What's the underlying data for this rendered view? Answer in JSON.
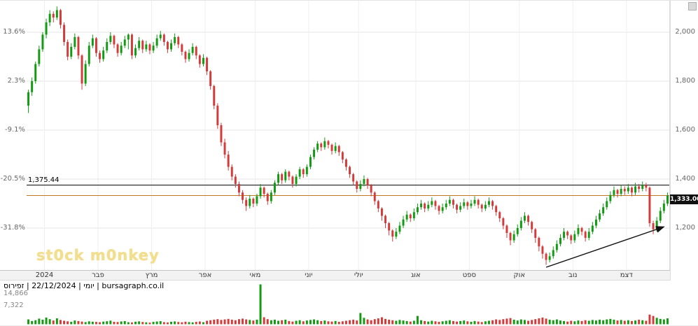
{
  "app": {
    "watermark": "st0ck m0nkey",
    "footer": "יומי | 22/12/2024 | זפירוס | bursagraph.co.il"
  },
  "chart_data": {
    "type": "candlestick",
    "title": "",
    "timeframe": "daily, year 2024",
    "pct_ticks": [
      "13.6%",
      "2.3%",
      "-9.1%",
      "-20.5%",
      "-31.8%"
    ],
    "price_ticks": [
      {
        "label": "2,000",
        "value": 2000
      },
      {
        "label": "1,800",
        "value": 1800
      },
      {
        "label": "1,600",
        "value": 1600
      },
      {
        "label": "1,400",
        "value": 1400
      },
      {
        "label": "1,200",
        "value": 1200
      }
    ],
    "current_price": {
      "label": "1,333.00",
      "value": 1333
    },
    "ref_line": {
      "label": "1,375.44",
      "value": 1375.44,
      "color": "#000000"
    },
    "avg_line": {
      "value": 1333,
      "color": "#c07820"
    },
    "volume_ticks": [
      "14,866",
      "7,322"
    ],
    "volume_max": 14866,
    "colors": {
      "up": "#129a12",
      "down": "#d43a3a"
    },
    "months": [
      {
        "label": "2024",
        "bar": 5
      },
      {
        "label": "פבר",
        "bar": 20
      },
      {
        "label": "מרץ",
        "bar": 35
      },
      {
        "label": "אפר",
        "bar": 50
      },
      {
        "label": "מאי",
        "bar": 64
      },
      {
        "label": "יוני",
        "bar": 79
      },
      {
        "label": "יולי",
        "bar": 93
      },
      {
        "label": "אוג",
        "bar": 109
      },
      {
        "label": "ספט",
        "bar": 124
      },
      {
        "label": "אוק",
        "bar": 138
      },
      {
        "label": "נוב",
        "bar": 153
      },
      {
        "label": "דצמ",
        "bar": 168
      }
    ],
    "trend_arrow": {
      "from": {
        "bar": 145,
        "price": 1040
      },
      "to": {
        "bar": 178,
        "price": 1205
      }
    },
    "candles": [
      [
        1700,
        1765,
        1670,
        1755
      ],
      [
        1755,
        1815,
        1740,
        1800
      ],
      [
        1800,
        1880,
        1790,
        1870
      ],
      [
        1870,
        1945,
        1860,
        1930
      ],
      [
        1930,
        2000,
        1920,
        1990
      ],
      [
        1990,
        2055,
        1975,
        2040
      ],
      [
        2040,
        2090,
        2025,
        2075
      ],
      [
        2075,
        2085,
        2040,
        2060
      ],
      [
        2060,
        2105,
        2050,
        2090
      ],
      [
        2090,
        2095,
        2015,
        2030
      ],
      [
        2030,
        2040,
        1945,
        1960
      ],
      [
        1960,
        1970,
        1885,
        1900
      ],
      [
        1900,
        1955,
        1890,
        1940
      ],
      [
        1940,
        1995,
        1930,
        1980
      ],
      [
        1980,
        1985,
        1890,
        1905
      ],
      [
        1905,
        1910,
        1765,
        1790
      ],
      [
        1790,
        1885,
        1780,
        1870
      ],
      [
        1870,
        1960,
        1860,
        1945
      ],
      [
        1945,
        1990,
        1935,
        1975
      ],
      [
        1975,
        1980,
        1900,
        1915
      ],
      [
        1915,
        1925,
        1875,
        1890
      ],
      [
        1890,
        1940,
        1880,
        1925
      ],
      [
        1925,
        1975,
        1915,
        1960
      ],
      [
        1960,
        2000,
        1950,
        1985
      ],
      [
        1985,
        1990,
        1935,
        1950
      ],
      [
        1950,
        1955,
        1900,
        1915
      ],
      [
        1915,
        1960,
        1905,
        1945
      ],
      [
        1945,
        1985,
        1935,
        1970
      ],
      [
        1970,
        1995,
        1930,
        1990
      ],
      [
        1990,
        1995,
        1890,
        1905
      ],
      [
        1905,
        1950,
        1895,
        1935
      ],
      [
        1935,
        1980,
        1925,
        1965
      ],
      [
        1965,
        1970,
        1915,
        1930
      ],
      [
        1930,
        1965,
        1920,
        1950
      ],
      [
        1950,
        1955,
        1910,
        1925
      ],
      [
        1925,
        1960,
        1915,
        1945
      ],
      [
        1945,
        1990,
        1935,
        1975
      ],
      [
        1975,
        2005,
        1965,
        1990
      ],
      [
        1990,
        1995,
        1945,
        1960
      ],
      [
        1960,
        1965,
        1915,
        1930
      ],
      [
        1930,
        1970,
        1920,
        1955
      ],
      [
        1955,
        1995,
        1945,
        1980
      ],
      [
        1980,
        1985,
        1935,
        1950
      ],
      [
        1950,
        1955,
        1905,
        1920
      ],
      [
        1920,
        1925,
        1875,
        1890
      ],
      [
        1890,
        1930,
        1880,
        1915
      ],
      [
        1915,
        1955,
        1905,
        1940
      ],
      [
        1940,
        1945,
        1890,
        1905
      ],
      [
        1905,
        1910,
        1855,
        1870
      ],
      [
        1870,
        1910,
        1860,
        1895
      ],
      [
        1895,
        1900,
        1825,
        1840
      ],
      [
        1840,
        1845,
        1765,
        1780
      ],
      [
        1780,
        1785,
        1685,
        1700
      ],
      [
        1700,
        1710,
        1605,
        1620
      ],
      [
        1620,
        1630,
        1535,
        1550
      ],
      [
        1550,
        1565,
        1485,
        1500
      ],
      [
        1500,
        1515,
        1435,
        1450
      ],
      [
        1450,
        1460,
        1395,
        1410
      ],
      [
        1410,
        1420,
        1365,
        1380
      ],
      [
        1380,
        1390,
        1330,
        1345
      ],
      [
        1345,
        1355,
        1300,
        1315
      ],
      [
        1315,
        1325,
        1270,
        1290
      ],
      [
        1290,
        1335,
        1280,
        1320
      ],
      [
        1320,
        1325,
        1285,
        1300
      ],
      [
        1300,
        1340,
        1290,
        1330
      ],
      [
        1330,
        1380,
        1320,
        1365
      ],
      [
        1365,
        1370,
        1325,
        1340
      ],
      [
        1340,
        1345,
        1295,
        1310
      ],
      [
        1310,
        1355,
        1300,
        1345
      ],
      [
        1345,
        1395,
        1335,
        1385
      ],
      [
        1385,
        1430,
        1375,
        1420
      ],
      [
        1420,
        1425,
        1380,
        1395
      ],
      [
        1395,
        1440,
        1385,
        1430
      ],
      [
        1430,
        1435,
        1395,
        1410
      ],
      [
        1410,
        1415,
        1365,
        1380
      ],
      [
        1380,
        1420,
        1370,
        1410
      ],
      [
        1410,
        1450,
        1400,
        1440
      ],
      [
        1440,
        1445,
        1405,
        1420
      ],
      [
        1420,
        1460,
        1410,
        1450
      ],
      [
        1450,
        1500,
        1440,
        1490
      ],
      [
        1490,
        1530,
        1480,
        1520
      ],
      [
        1520,
        1555,
        1510,
        1545
      ],
      [
        1545,
        1550,
        1515,
        1530
      ],
      [
        1530,
        1570,
        1520,
        1555
      ],
      [
        1555,
        1560,
        1525,
        1540
      ],
      [
        1540,
        1545,
        1500,
        1515
      ],
      [
        1515,
        1550,
        1505,
        1535
      ],
      [
        1535,
        1540,
        1495,
        1510
      ],
      [
        1510,
        1515,
        1465,
        1480
      ],
      [
        1480,
        1485,
        1435,
        1450
      ],
      [
        1450,
        1455,
        1405,
        1420
      ],
      [
        1420,
        1425,
        1375,
        1390
      ],
      [
        1390,
        1395,
        1345,
        1360
      ],
      [
        1360,
        1395,
        1350,
        1380
      ],
      [
        1380,
        1415,
        1370,
        1400
      ],
      [
        1400,
        1405,
        1360,
        1375
      ],
      [
        1375,
        1380,
        1330,
        1345
      ],
      [
        1345,
        1350,
        1295,
        1310
      ],
      [
        1310,
        1315,
        1265,
        1280
      ],
      [
        1280,
        1285,
        1230,
        1250
      ],
      [
        1250,
        1255,
        1200,
        1220
      ],
      [
        1220,
        1225,
        1170,
        1190
      ],
      [
        1190,
        1195,
        1145,
        1165
      ],
      [
        1165,
        1200,
        1155,
        1185
      ],
      [
        1185,
        1225,
        1175,
        1210
      ],
      [
        1210,
        1250,
        1200,
        1235
      ],
      [
        1235,
        1270,
        1225,
        1255
      ],
      [
        1255,
        1260,
        1225,
        1240
      ],
      [
        1240,
        1280,
        1230,
        1265
      ],
      [
        1265,
        1300,
        1255,
        1285
      ],
      [
        1285,
        1315,
        1275,
        1300
      ],
      [
        1300,
        1305,
        1265,
        1280
      ],
      [
        1280,
        1310,
        1270,
        1295
      ],
      [
        1295,
        1325,
        1285,
        1310
      ],
      [
        1310,
        1315,
        1275,
        1290
      ],
      [
        1290,
        1295,
        1255,
        1270
      ],
      [
        1270,
        1300,
        1260,
        1285
      ],
      [
        1285,
        1315,
        1275,
        1300
      ],
      [
        1300,
        1330,
        1290,
        1315
      ],
      [
        1315,
        1320,
        1280,
        1295
      ],
      [
        1295,
        1300,
        1260,
        1275
      ],
      [
        1275,
        1305,
        1265,
        1290
      ],
      [
        1290,
        1320,
        1280,
        1305
      ],
      [
        1305,
        1310,
        1275,
        1290
      ],
      [
        1290,
        1315,
        1280,
        1300
      ],
      [
        1300,
        1330,
        1290,
        1315
      ],
      [
        1315,
        1320,
        1280,
        1295
      ],
      [
        1295,
        1300,
        1265,
        1280
      ],
      [
        1280,
        1310,
        1270,
        1295
      ],
      [
        1295,
        1325,
        1285,
        1310
      ],
      [
        1310,
        1315,
        1275,
        1290
      ],
      [
        1290,
        1295,
        1250,
        1265
      ],
      [
        1265,
        1270,
        1225,
        1240
      ],
      [
        1240,
        1245,
        1195,
        1210
      ],
      [
        1210,
        1215,
        1160,
        1180
      ],
      [
        1180,
        1185,
        1130,
        1150
      ],
      [
        1150,
        1190,
        1140,
        1175
      ],
      [
        1175,
        1215,
        1165,
        1200
      ],
      [
        1200,
        1245,
        1190,
        1230
      ],
      [
        1230,
        1265,
        1220,
        1250
      ],
      [
        1250,
        1255,
        1210,
        1225
      ],
      [
        1225,
        1230,
        1180,
        1195
      ],
      [
        1195,
        1200,
        1140,
        1160
      ],
      [
        1160,
        1165,
        1105,
        1125
      ],
      [
        1125,
        1130,
        1075,
        1095
      ],
      [
        1095,
        1100,
        1050,
        1070
      ],
      [
        1070,
        1100,
        1060,
        1085
      ],
      [
        1085,
        1125,
        1075,
        1110
      ],
      [
        1110,
        1150,
        1100,
        1135
      ],
      [
        1135,
        1175,
        1125,
        1160
      ],
      [
        1160,
        1200,
        1150,
        1185
      ],
      [
        1185,
        1190,
        1155,
        1170
      ],
      [
        1170,
        1175,
        1135,
        1150
      ],
      [
        1150,
        1190,
        1140,
        1175
      ],
      [
        1175,
        1215,
        1165,
        1200
      ],
      [
        1200,
        1205,
        1170,
        1185
      ],
      [
        1185,
        1190,
        1145,
        1160
      ],
      [
        1160,
        1200,
        1150,
        1185
      ],
      [
        1185,
        1225,
        1175,
        1210
      ],
      [
        1210,
        1250,
        1200,
        1235
      ],
      [
        1235,
        1275,
        1225,
        1260
      ],
      [
        1260,
        1300,
        1250,
        1285
      ],
      [
        1285,
        1325,
        1275,
        1310
      ],
      [
        1310,
        1350,
        1300,
        1335
      ],
      [
        1335,
        1370,
        1325,
        1355
      ],
      [
        1355,
        1360,
        1325,
        1340
      ],
      [
        1340,
        1375,
        1330,
        1360
      ],
      [
        1360,
        1370,
        1335,
        1350
      ],
      [
        1350,
        1380,
        1340,
        1365
      ],
      [
        1365,
        1370,
        1330,
        1345
      ],
      [
        1345,
        1385,
        1335,
        1370
      ],
      [
        1370,
        1380,
        1345,
        1360
      ],
      [
        1360,
        1390,
        1350,
        1375
      ],
      [
        1375,
        1385,
        1350,
        1365
      ],
      [
        1365,
        1370,
        1205,
        1220
      ],
      [
        1220,
        1230,
        1175,
        1195
      ],
      [
        1195,
        1245,
        1185,
        1230
      ],
      [
        1230,
        1285,
        1220,
        1270
      ],
      [
        1270,
        1315,
        1260,
        1300
      ],
      [
        1300,
        1345,
        1290,
        1333
      ]
    ],
    "volumes": [
      1800,
      1200,
      1500,
      2100,
      1700,
      2500,
      1900,
      1400,
      2200,
      1600,
      1300,
      1100,
      900,
      1400,
      1200,
      1000,
      800,
      1100,
      950,
      870,
      760,
      980,
      1120,
      1350,
      900,
      820,
      1050,
      1180,
      760,
      690,
      940,
      1080,
      850,
      720,
      610,
      880,
      1020,
      1150,
      790,
      680,
      920,
      1060,
      840,
      730,
      950,
      800,
      700,
      880,
      1040,
      760,
      1300,
      1500,
      1700,
      1900,
      1600,
      1800,
      2000,
      1700,
      1500,
      1900,
      2100,
      1800,
      1600,
      1400,
      1700,
      14866,
      2600,
      1900,
      1500,
      1700,
      1300,
      1500,
      1700,
      1200,
      1000,
      1300,
      1500,
      1100,
      1400,
      1600,
      1800,
      1500,
      1200,
      1400,
      1100,
      1000,
      1200,
      900,
      1100,
      1300,
      1500,
      1700,
      1400,
      4200,
      2400,
      1800,
      1500,
      1900,
      2200,
      2600,
      2000,
      1700,
      1500,
      1300,
      1600,
      1400,
      1200,
      1000,
      1300,
      3100,
      1500,
      1200,
      1000,
      1300,
      1100,
      900,
      1100,
      1300,
      1500,
      1200,
      1000,
      1200,
      1400,
      1100,
      900,
      1200,
      1000,
      800,
      1100,
      1300,
      1500,
      1800,
      1600,
      1900,
      2100,
      2300,
      1700,
      1400,
      1800,
      1600,
      1300,
      1600,
      1900,
      2200,
      2500,
      2100,
      1700,
      1500,
      1800,
      1400,
      1200,
      1000,
      1300,
      1100,
      1400,
      1200,
      1500,
      1300,
      1600,
      1400,
      1700,
      1500,
      1800,
      2000,
      1700,
      1400,
      1600,
      1300,
      1500,
      1200,
      1400,
      1700,
      1500,
      1300,
      3600,
      3100,
      2400,
      2000,
      1800,
      2200
    ]
  }
}
